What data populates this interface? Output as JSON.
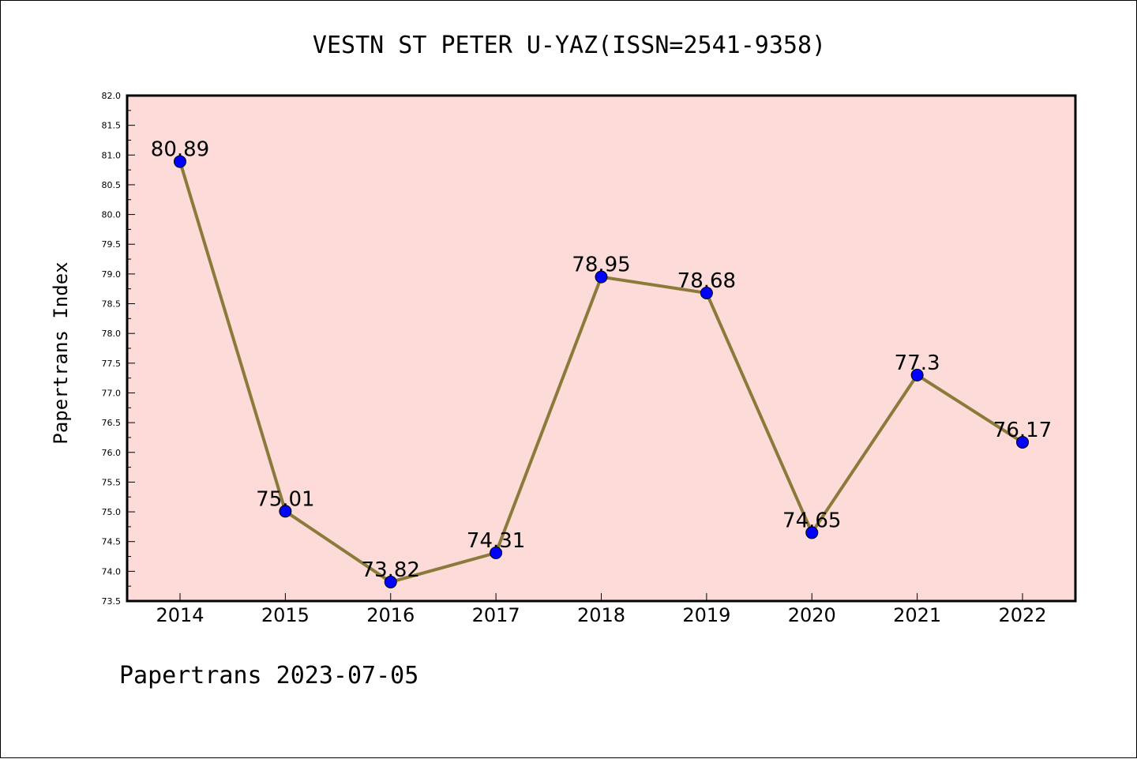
{
  "chart_data": {
    "type": "line",
    "title": "VESTN ST PETER U-YAZ(ISSN=2541-9358)",
    "xlabel": "",
    "ylabel": "Papertrans Index",
    "categories": [
      "2014",
      "2015",
      "2016",
      "2017",
      "2018",
      "2019",
      "2020",
      "2021",
      "2022"
    ],
    "series": [
      {
        "values": [
          80.89,
          75.01,
          73.82,
          74.31,
          78.95,
          78.68,
          74.65,
          77.3,
          76.17
        ],
        "labels": [
          "80.89",
          "75.01",
          "73.82",
          "74.31",
          "78.95",
          "78.68",
          "74.65",
          "77.3",
          "76.17"
        ],
        "line_color": "#8b7a3a",
        "marker_color": "#0000ff"
      }
    ],
    "ylim": [
      73.5,
      82.0
    ],
    "yticks": [
      "73.5",
      "74.0",
      "74.5",
      "75.0",
      "75.5",
      "76.0",
      "76.5",
      "77.0",
      "77.5",
      "78.0",
      "78.5",
      "79.0",
      "79.5",
      "80.0",
      "80.5",
      "81.0",
      "81.5",
      "82.0"
    ],
    "grid": false,
    "plot_background": "#fddbd9"
  },
  "footer": "Papertrans 2023-07-05"
}
